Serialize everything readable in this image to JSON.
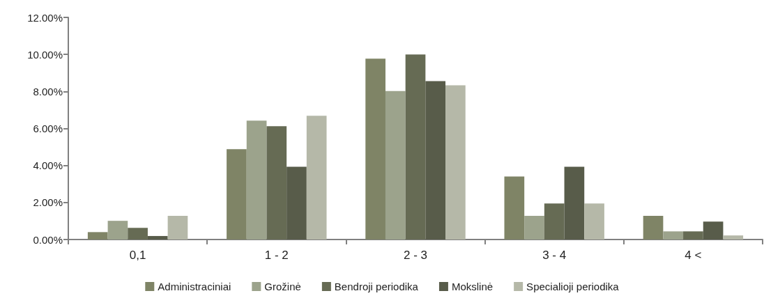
{
  "chart_data": {
    "type": "bar",
    "categories": [
      "0,1",
      "1 - 2",
      "2 - 3",
      "3 - 4",
      "4 <"
    ],
    "series": [
      {
        "name": "Administraciniai",
        "color": "#7f8466",
        "values": [
          0.4,
          4.88,
          9.77,
          3.4,
          1.28
        ]
      },
      {
        "name": "Grožinė",
        "color": "#9ca38c",
        "values": [
          1.01,
          6.42,
          8.02,
          1.28,
          0.44
        ]
      },
      {
        "name": "Bendroji periodika",
        "color": "#666b54",
        "values": [
          0.63,
          6.12,
          10.0,
          1.95,
          0.44
        ]
      },
      {
        "name": "Mokslinė",
        "color": "#585c4a",
        "values": [
          0.19,
          3.93,
          8.56,
          3.93,
          0.97
        ]
      },
      {
        "name": "Specialioji periodika",
        "color": "#b5b8a8",
        "values": [
          1.28,
          6.69,
          8.33,
          1.95,
          0.22
        ]
      }
    ],
    "ylim": [
      0,
      12
    ],
    "yticks": [
      {
        "value": 0,
        "label": "0.00%"
      },
      {
        "value": 2,
        "label": "2.00%"
      },
      {
        "value": 4,
        "label": "4.00%"
      },
      {
        "value": 6,
        "label": "6.00%"
      },
      {
        "value": 8,
        "label": "8.00%"
      },
      {
        "value": 10,
        "label": "10.00%"
      },
      {
        "value": 12,
        "label": "12.00%"
      }
    ],
    "grid": false,
    "legend": "bottom"
  }
}
